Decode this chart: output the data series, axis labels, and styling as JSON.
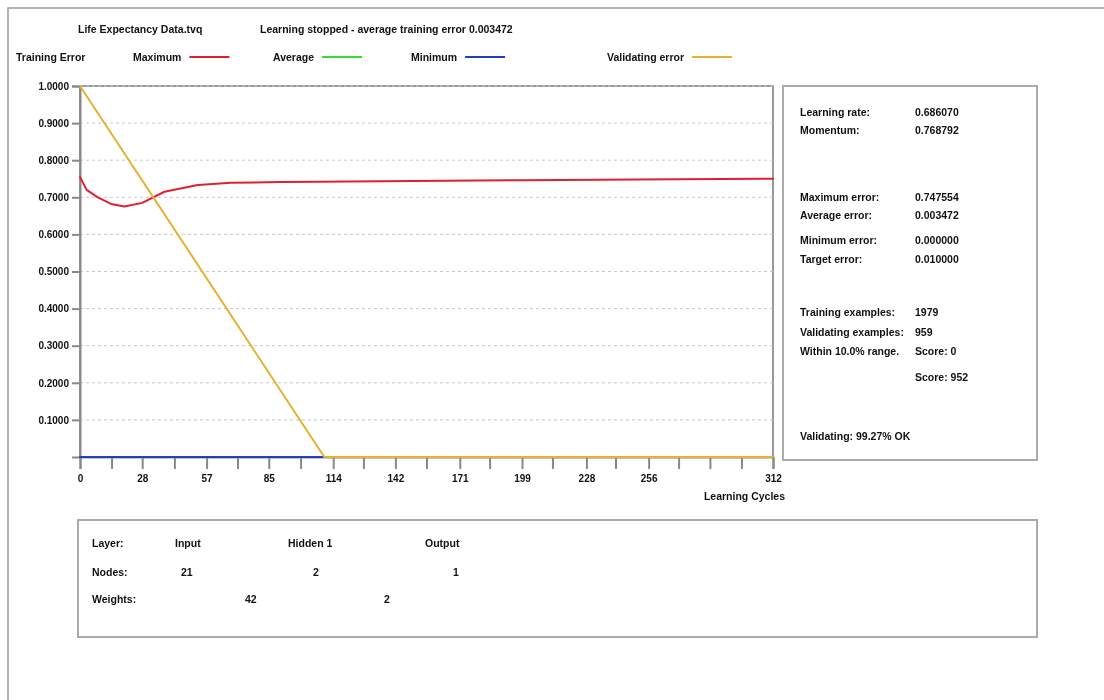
{
  "chart_data": [
    {
      "type": "line",
      "title": "Life Expectancy Data.tvq",
      "subtitle": "Learning stopped - average training error 0.003472",
      "ylabel": "Training Error",
      "xlabel": "Learning Cycles",
      "xlim": [
        0,
        312
      ],
      "ylim": [
        0,
        1
      ],
      "xticks": [
        0,
        {
          "value": 14.2,
          "label": null
        },
        28,
        {
          "value": 42.5,
          "label": null
        },
        57,
        {
          "value": 70.9,
          "label": null
        },
        85,
        {
          "value": 99.3,
          "label": null
        },
        114,
        {
          "value": 127.6,
          "label": null
        },
        142,
        {
          "value": 156,
          "label": null
        },
        171,
        {
          "value": 184.4,
          "label": null
        },
        199,
        {
          "value": 212.7,
          "label": null
        },
        228,
        {
          "value": 241.1,
          "label": null
        },
        256,
        {
          "value": 269.5,
          "label": null
        },
        {
          "value": 283.6,
          "label": null
        },
        {
          "value": 297.8,
          "label": null
        },
        312
      ],
      "yticks": [
        {
          "value": 0.1,
          "label": "0.1000"
        },
        {
          "value": 0.2,
          "label": "0.2000"
        },
        {
          "value": 0.3,
          "label": "0.3000"
        },
        {
          "value": 0.4,
          "label": "0.4000"
        },
        {
          "value": 0.5,
          "label": "0.5000"
        },
        {
          "value": 0.6,
          "label": "0.6000"
        },
        {
          "value": 0.7,
          "label": "0.7000"
        },
        {
          "value": 0.8,
          "label": "0.8000"
        },
        {
          "value": 0.9,
          "label": "0.9000"
        },
        {
          "value": 1,
          "label": "1.0000"
        }
      ],
      "grid": "y",
      "legend": "top",
      "line_style": "solid",
      "series": [
        {
          "name": "Maximum",
          "color": "#e02030",
          "x": [
            0,
            3,
            8,
            14,
            20,
            28,
            38,
            53,
            68,
            90,
            107,
            150,
            200,
            250,
            312
          ],
          "values": [
            0.755,
            0.72,
            0.7,
            0.682,
            0.675,
            0.685,
            0.715,
            0.733,
            0.739,
            0.741,
            0.742,
            0.744,
            0.746,
            0.748,
            0.75
          ]
        },
        {
          "name": "Average",
          "color": "#33dd33"
        },
        {
          "name": "Minimum",
          "color": "#2040c0",
          "x": [
            0,
            110
          ],
          "values": [
            0,
            0
          ]
        },
        {
          "name": "Validating error",
          "color": "#e8b030",
          "x": [
            0,
            110,
            312
          ],
          "values": [
            1,
            0,
            0
          ]
        }
      ]
    },
    {
      "type": "other",
      "annotations": [
        "Learning rate:",
        "0.686070",
        "Momentum:",
        "0.768792",
        "Maximum error:",
        "0.747554",
        "Average error:",
        "0.003472",
        "Minimum error:",
        "0.000000",
        "Target error:",
        "0.010000",
        "Training examples:",
        "1979",
        "Validating examples:",
        "959",
        "Within 10.0% range.",
        "Score: 0",
        "Score: 952",
        "Validating: 99.27% OK"
      ]
    },
    {
      "type": "other",
      "annotations": [
        "Layer:",
        "Input",
        "Hidden 1",
        "Output",
        "Nodes:",
        "21",
        "2",
        "1",
        "Weights:",
        "42",
        "2"
      ]
    }
  ]
}
